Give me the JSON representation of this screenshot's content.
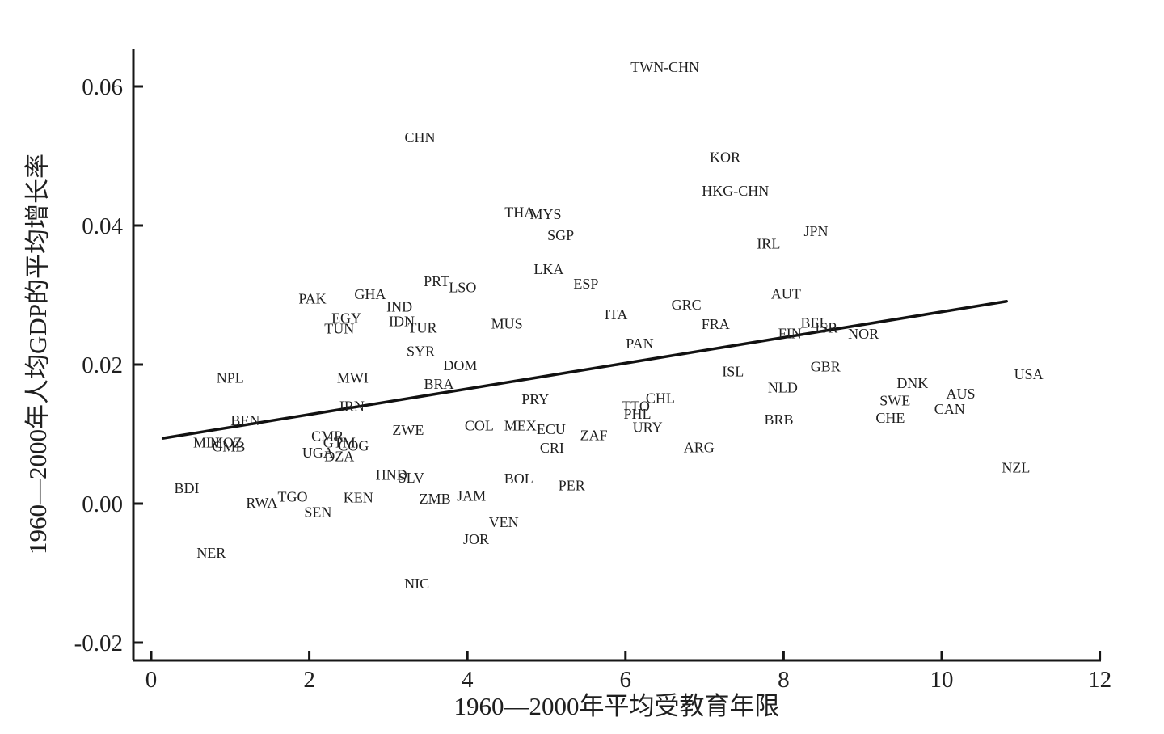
{
  "chart_data": {
    "type": "scatter",
    "title": "",
    "xlabel": "1960—2000年平均受教育年限",
    "ylabel": "1960—2000年人均GDP的平均增长率",
    "xlim": [
      -0.25,
      12.1
    ],
    "ylim": [
      -0.0245,
      0.065
    ],
    "x_ticks": [
      0,
      2,
      4,
      6,
      8,
      10,
      12
    ],
    "x_tick_labels": [
      "0",
      "2",
      "4",
      "6",
      "8",
      "10",
      "12"
    ],
    "y_ticks": [
      0.06,
      0.04,
      0.02,
      0.0,
      -0.02
    ],
    "y_tick_labels": [
      "0.06",
      "0.04",
      "0.02",
      "0.00",
      "-0.02"
    ],
    "grid": false,
    "legend": false,
    "marker_style": "country-code-text-labels",
    "trend_line": {
      "x1": 0.15,
      "y1": 0.0094,
      "x2": 10.82,
      "y2": 0.0291
    },
    "points": [
      {
        "label": "TWN-CHN",
        "x": 6.5,
        "y": 0.0628
      },
      {
        "label": "CHN",
        "x": 3.4,
        "y": 0.0527
      },
      {
        "label": "KOR",
        "x": 7.26,
        "y": 0.0498
      },
      {
        "label": "HKG-CHN",
        "x": 7.39,
        "y": 0.045
      },
      {
        "label": "THA",
        "x": 4.66,
        "y": 0.0419
      },
      {
        "label": "MYS",
        "x": 4.99,
        "y": 0.0416
      },
      {
        "label": "SGP",
        "x": 5.18,
        "y": 0.0386
      },
      {
        "label": "JPN",
        "x": 8.41,
        "y": 0.0392
      },
      {
        "label": "IRL",
        "x": 7.81,
        "y": 0.0374
      },
      {
        "label": "LKA",
        "x": 5.03,
        "y": 0.0337
      },
      {
        "label": "ESP",
        "x": 5.5,
        "y": 0.0316
      },
      {
        "label": "PRT",
        "x": 3.61,
        "y": 0.032
      },
      {
        "label": "LSO",
        "x": 3.94,
        "y": 0.0311
      },
      {
        "label": "AUT",
        "x": 8.03,
        "y": 0.0302
      },
      {
        "label": "GHA",
        "x": 2.77,
        "y": 0.0301
      },
      {
        "label": "PAK",
        "x": 2.04,
        "y": 0.0295
      },
      {
        "label": "GRC",
        "x": 6.77,
        "y": 0.0286
      },
      {
        "label": "IND",
        "x": 3.14,
        "y": 0.0283
      },
      {
        "label": "ITA",
        "x": 5.88,
        "y": 0.0272
      },
      {
        "label": "EGY",
        "x": 2.47,
        "y": 0.0267
      },
      {
        "label": "IDN",
        "x": 3.17,
        "y": 0.0262
      },
      {
        "label": "BEL",
        "x": 8.39,
        "y": 0.026
      },
      {
        "label": "MUS",
        "x": 4.5,
        "y": 0.0259
      },
      {
        "label": "FRA",
        "x": 7.14,
        "y": 0.0258
      },
      {
        "label": "ISR",
        "x": 8.54,
        "y": 0.0253
      },
      {
        "label": "TUR",
        "x": 3.43,
        "y": 0.0253
      },
      {
        "label": "TUN",
        "x": 2.38,
        "y": 0.0252
      },
      {
        "label": "FIN",
        "x": 8.08,
        "y": 0.0245
      },
      {
        "label": "NOR",
        "x": 9.01,
        "y": 0.0244
      },
      {
        "label": "PAN",
        "x": 6.18,
        "y": 0.023
      },
      {
        "label": "SYR",
        "x": 3.41,
        "y": 0.0219
      },
      {
        "label": "DOM",
        "x": 3.91,
        "y": 0.0199
      },
      {
        "label": "GBR",
        "x": 8.53,
        "y": 0.0197
      },
      {
        "label": "ISL",
        "x": 7.36,
        "y": 0.019
      },
      {
        "label": "USA",
        "x": 11.1,
        "y": 0.0186
      },
      {
        "label": "NPL",
        "x": 1.0,
        "y": 0.0181
      },
      {
        "label": "MWI",
        "x": 2.55,
        "y": 0.0181
      },
      {
        "label": "DNK",
        "x": 9.63,
        "y": 0.0173
      },
      {
        "label": "BRA",
        "x": 3.64,
        "y": 0.0172
      },
      {
        "label": "NLD",
        "x": 7.99,
        "y": 0.0167
      },
      {
        "label": "AUS",
        "x": 10.24,
        "y": 0.0158
      },
      {
        "label": "CHL",
        "x": 6.44,
        "y": 0.0152
      },
      {
        "label": "PRY",
        "x": 4.86,
        "y": 0.015
      },
      {
        "label": "SWE",
        "x": 9.41,
        "y": 0.0148
      },
      {
        "label": "IRN",
        "x": 2.54,
        "y": 0.014
      },
      {
        "label": "TTO",
        "x": 6.13,
        "y": 0.014
      },
      {
        "label": "CAN",
        "x": 10.1,
        "y": 0.0136
      },
      {
        "label": "PHL",
        "x": 6.15,
        "y": 0.0129
      },
      {
        "label": "CHE",
        "x": 9.35,
        "y": 0.0123
      },
      {
        "label": "BRB",
        "x": 7.94,
        "y": 0.0121
      },
      {
        "label": "BEN",
        "x": 1.19,
        "y": 0.012
      },
      {
        "label": "COL",
        "x": 4.15,
        "y": 0.0112
      },
      {
        "label": "MEX",
        "x": 4.67,
        "y": 0.0112
      },
      {
        "label": "URY",
        "x": 6.28,
        "y": 0.011
      },
      {
        "label": "ECU",
        "x": 5.06,
        "y": 0.0107
      },
      {
        "label": "ZWE",
        "x": 3.25,
        "y": 0.0106
      },
      {
        "label": "ZAF",
        "x": 5.6,
        "y": 0.0098
      },
      {
        "label": "CMR",
        "x": 2.23,
        "y": 0.0097
      },
      {
        "label": "MLI",
        "x": 0.7,
        "y": 0.0088
      },
      {
        "label": "MOZ",
        "x": 0.95,
        "y": 0.0088
      },
      {
        "label": "GTM",
        "x": 2.38,
        "y": 0.0088
      },
      {
        "label": "COG",
        "x": 2.56,
        "y": 0.0083
      },
      {
        "label": "GMB",
        "x": 0.98,
        "y": 0.0082
      },
      {
        "label": "CRI",
        "x": 5.07,
        "y": 0.008
      },
      {
        "label": "ARG",
        "x": 6.93,
        "y": 0.0081
      },
      {
        "label": "UGA",
        "x": 2.11,
        "y": 0.0073
      },
      {
        "label": "DZA",
        "x": 2.38,
        "y": 0.0068
      },
      {
        "label": "NZL",
        "x": 10.94,
        "y": 0.0052
      },
      {
        "label": "HND",
        "x": 3.04,
        "y": 0.0041
      },
      {
        "label": "SLV",
        "x": 3.29,
        "y": 0.0037
      },
      {
        "label": "BOL",
        "x": 4.65,
        "y": 0.0036
      },
      {
        "label": "PER",
        "x": 5.32,
        "y": 0.0026
      },
      {
        "label": "BDI",
        "x": 0.45,
        "y": 0.0022
      },
      {
        "label": "TGO",
        "x": 1.79,
        "y": 0.001
      },
      {
        "label": "KEN",
        "x": 2.62,
        "y": 0.0009
      },
      {
        "label": "JAM",
        "x": 4.05,
        "y": 0.0011
      },
      {
        "label": "ZMB",
        "x": 3.59,
        "y": 0.0007
      },
      {
        "label": "RWA",
        "x": 1.4,
        "y": 0.0001
      },
      {
        "label": "SEN",
        "x": 2.11,
        "y": -0.0012
      },
      {
        "label": "VEN",
        "x": 4.46,
        "y": -0.0027
      },
      {
        "label": "JOR",
        "x": 4.11,
        "y": -0.0051
      },
      {
        "label": "NER",
        "x": 0.76,
        "y": -0.0071
      },
      {
        "label": "NIC",
        "x": 3.36,
        "y": -0.0115
      }
    ]
  },
  "colors": {
    "background": "#ffffff",
    "text": "#1f1f1f",
    "axis": "#161616",
    "trend_line": "#111111"
  }
}
